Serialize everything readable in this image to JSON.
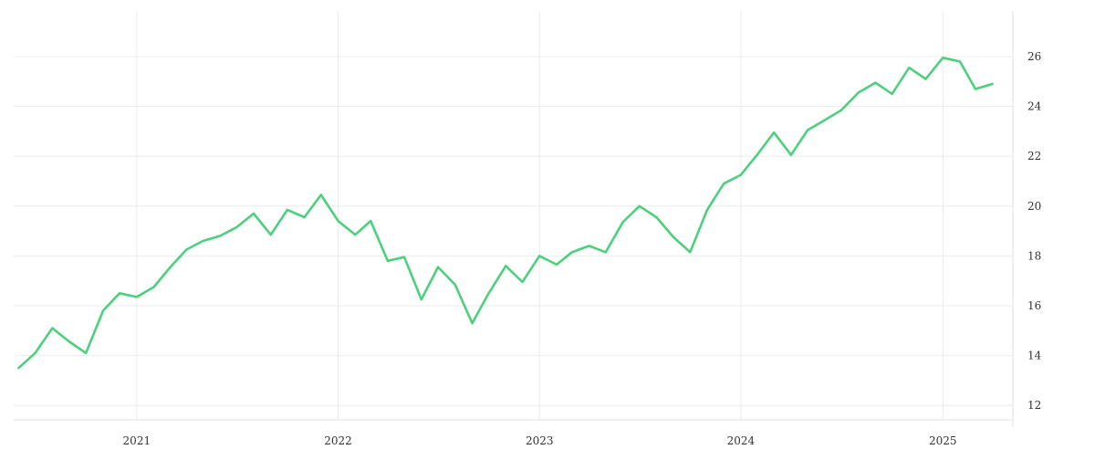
{
  "chart_data": {
    "type": "line",
    "title": "",
    "xlabel": "",
    "ylabel": "",
    "x_tick_labels": [
      "2021",
      "2022",
      "2023",
      "2024",
      "2025"
    ],
    "y_ticks": [
      12,
      14,
      16,
      18,
      20,
      22,
      24,
      26
    ],
    "y_tick_labels": [
      "12",
      "14",
      "16",
      "18",
      "20",
      "22",
      "24",
      "26"
    ],
    "xlim": [
      "2020-05-23",
      "2025-05-08"
    ],
    "ylim": [
      11.42,
      27.83
    ],
    "y_axis_position": "right",
    "grid": true,
    "colors": {
      "line": "#4cd07d",
      "grid": "#ebebeb",
      "axis": "#e0e0e0",
      "text": "#333333"
    },
    "series": [
      {
        "x": [
          "2020-06-01",
          "2020-07-01",
          "2020-08-01",
          "2020-09-01",
          "2020-10-01",
          "2020-11-01",
          "2020-12-01",
          "2021-01-01",
          "2021-02-01",
          "2021-03-01",
          "2021-04-01",
          "2021-05-01",
          "2021-06-01",
          "2021-07-01",
          "2021-08-01",
          "2021-09-01",
          "2021-10-01",
          "2021-11-01",
          "2021-12-01",
          "2022-01-01",
          "2022-02-01",
          "2022-03-01",
          "2022-04-01",
          "2022-05-01",
          "2022-06-01",
          "2022-07-01",
          "2022-08-01",
          "2022-09-01",
          "2022-10-01",
          "2022-11-01",
          "2022-12-01",
          "2023-01-01",
          "2023-02-01",
          "2023-03-01",
          "2023-04-01",
          "2023-05-01",
          "2023-06-01",
          "2023-07-01",
          "2023-08-01",
          "2023-09-01",
          "2023-10-01",
          "2023-11-01",
          "2023-12-01",
          "2024-01-01",
          "2024-02-01",
          "2024-03-01",
          "2024-04-01",
          "2024-05-01",
          "2024-06-01",
          "2024-07-01",
          "2024-08-01",
          "2024-09-01",
          "2024-10-01",
          "2024-11-01",
          "2024-12-01",
          "2025-01-01",
          "2025-02-01",
          "2025-03-01",
          "2025-04-01"
        ],
        "values": [
          13.5,
          14.1,
          15.1,
          14.55,
          14.1,
          15.8,
          16.5,
          16.35,
          16.75,
          17.5,
          18.25,
          18.6,
          18.8,
          19.15,
          19.7,
          18.85,
          19.85,
          19.55,
          20.45,
          19.4,
          18.85,
          19.4,
          17.8,
          17.95,
          16.25,
          17.55,
          16.85,
          15.3,
          16.5,
          17.6,
          16.95,
          18.0,
          17.65,
          18.15,
          18.4,
          18.15,
          19.35,
          20.0,
          19.55,
          18.75,
          18.15,
          19.85,
          20.9,
          21.25,
          22.1,
          22.95,
          22.05,
          23.05,
          23.45,
          23.85,
          24.55,
          24.95,
          24.5,
          25.55,
          25.1,
          25.95,
          25.8,
          24.7,
          24.9
        ]
      }
    ]
  }
}
